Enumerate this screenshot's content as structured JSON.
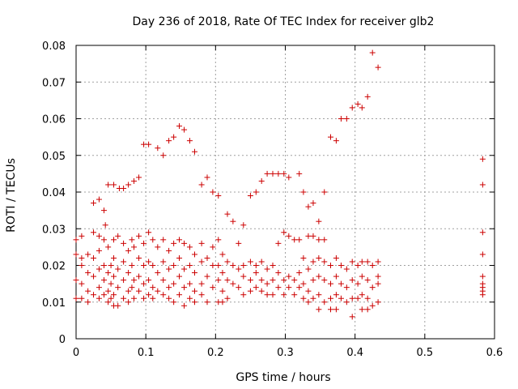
{
  "chart_data": {
    "type": "scatter",
    "title": "Day 236 of 2018, Rate Of TEC Index for receiver glb2",
    "xlabel": "GPS time / hours",
    "ylabel": "ROTI / TECUs",
    "xlim": [
      0,
      0.6
    ],
    "ylim": [
      0,
      0.08
    ],
    "x_ticks": [
      "0",
      "0.1",
      "0.2",
      "0.3",
      "0.4",
      "0.5",
      "0.6"
    ],
    "y_ticks": [
      "0",
      "0.01",
      "0.02",
      "0.03",
      "0.04",
      "0.05",
      "0.06",
      "0.07",
      "0.08"
    ],
    "grid": true,
    "marker": "+",
    "series": [
      {
        "color": "#cc0000",
        "points": [
          [
            0.0,
            0.027
          ],
          [
            0.0,
            0.023
          ],
          [
            0.0,
            0.016
          ],
          [
            0.0,
            0.011
          ],
          [
            0.008,
            0.028
          ],
          [
            0.008,
            0.022
          ],
          [
            0.008,
            0.02
          ],
          [
            0.008,
            0.015
          ],
          [
            0.008,
            0.011
          ],
          [
            0.017,
            0.023
          ],
          [
            0.017,
            0.018
          ],
          [
            0.017,
            0.013
          ],
          [
            0.017,
            0.01
          ],
          [
            0.025,
            0.029
          ],
          [
            0.025,
            0.022
          ],
          [
            0.025,
            0.017
          ],
          [
            0.025,
            0.012
          ],
          [
            0.025,
            0.037
          ],
          [
            0.033,
            0.038
          ],
          [
            0.033,
            0.028
          ],
          [
            0.033,
            0.024
          ],
          [
            0.033,
            0.019
          ],
          [
            0.033,
            0.014
          ],
          [
            0.033,
            0.011
          ],
          [
            0.04,
            0.035
          ],
          [
            0.04,
            0.027
          ],
          [
            0.04,
            0.02
          ],
          [
            0.04,
            0.016
          ],
          [
            0.04,
            0.012
          ],
          [
            0.042,
            0.031
          ],
          [
            0.046,
            0.042
          ],
          [
            0.046,
            0.025
          ],
          [
            0.046,
            0.018
          ],
          [
            0.046,
            0.013
          ],
          [
            0.046,
            0.01
          ],
          [
            0.05,
            0.02
          ],
          [
            0.05,
            0.015
          ],
          [
            0.05,
            0.011
          ],
          [
            0.054,
            0.042
          ],
          [
            0.054,
            0.027
          ],
          [
            0.054,
            0.022
          ],
          [
            0.054,
            0.017
          ],
          [
            0.054,
            0.012
          ],
          [
            0.054,
            0.009
          ],
          [
            0.06,
            0.028
          ],
          [
            0.06,
            0.019
          ],
          [
            0.06,
            0.014
          ],
          [
            0.06,
            0.009
          ],
          [
            0.062,
            0.041
          ],
          [
            0.068,
            0.041
          ],
          [
            0.068,
            0.026
          ],
          [
            0.068,
            0.021
          ],
          [
            0.068,
            0.016
          ],
          [
            0.068,
            0.011
          ],
          [
            0.075,
            0.042
          ],
          [
            0.075,
            0.024
          ],
          [
            0.075,
            0.018
          ],
          [
            0.075,
            0.013
          ],
          [
            0.075,
            0.01
          ],
          [
            0.08,
            0.027
          ],
          [
            0.08,
            0.02
          ],
          [
            0.08,
            0.014
          ],
          [
            0.083,
            0.043
          ],
          [
            0.083,
            0.025
          ],
          [
            0.083,
            0.016
          ],
          [
            0.083,
            0.011
          ],
          [
            0.09,
            0.044
          ],
          [
            0.09,
            0.028
          ],
          [
            0.09,
            0.022
          ],
          [
            0.09,
            0.017
          ],
          [
            0.09,
            0.013
          ],
          [
            0.097,
            0.053
          ],
          [
            0.097,
            0.026
          ],
          [
            0.097,
            0.02
          ],
          [
            0.097,
            0.015
          ],
          [
            0.097,
            0.011
          ],
          [
            0.104,
            0.053
          ],
          [
            0.104,
            0.029
          ],
          [
            0.104,
            0.021
          ],
          [
            0.104,
            0.016
          ],
          [
            0.104,
            0.012
          ],
          [
            0.11,
            0.027
          ],
          [
            0.11,
            0.02
          ],
          [
            0.11,
            0.014
          ],
          [
            0.11,
            0.011
          ],
          [
            0.117,
            0.052
          ],
          [
            0.117,
            0.025
          ],
          [
            0.117,
            0.018
          ],
          [
            0.117,
            0.013
          ],
          [
            0.125,
            0.05
          ],
          [
            0.125,
            0.027
          ],
          [
            0.125,
            0.021
          ],
          [
            0.125,
            0.016
          ],
          [
            0.125,
            0.012
          ],
          [
            0.133,
            0.054
          ],
          [
            0.133,
            0.024
          ],
          [
            0.133,
            0.019
          ],
          [
            0.133,
            0.014
          ],
          [
            0.133,
            0.011
          ],
          [
            0.14,
            0.055
          ],
          [
            0.14,
            0.026
          ],
          [
            0.14,
            0.02
          ],
          [
            0.14,
            0.015
          ],
          [
            0.14,
            0.01
          ],
          [
            0.148,
            0.058
          ],
          [
            0.148,
            0.027
          ],
          [
            0.148,
            0.022
          ],
          [
            0.148,
            0.017
          ],
          [
            0.148,
            0.012
          ],
          [
            0.155,
            0.057
          ],
          [
            0.155,
            0.026
          ],
          [
            0.155,
            0.019
          ],
          [
            0.155,
            0.014
          ],
          [
            0.155,
            0.009
          ],
          [
            0.163,
            0.054
          ],
          [
            0.163,
            0.025
          ],
          [
            0.163,
            0.02
          ],
          [
            0.163,
            0.015
          ],
          [
            0.163,
            0.011
          ],
          [
            0.17,
            0.051
          ],
          [
            0.17,
            0.023
          ],
          [
            0.17,
            0.018
          ],
          [
            0.17,
            0.013
          ],
          [
            0.17,
            0.01
          ],
          [
            0.18,
            0.042
          ],
          [
            0.18,
            0.026
          ],
          [
            0.18,
            0.021
          ],
          [
            0.18,
            0.015
          ],
          [
            0.18,
            0.012
          ],
          [
            0.188,
            0.044
          ],
          [
            0.188,
            0.022
          ],
          [
            0.188,
            0.017
          ],
          [
            0.188,
            0.01
          ],
          [
            0.196,
            0.04
          ],
          [
            0.196,
            0.025
          ],
          [
            0.196,
            0.02
          ],
          [
            0.196,
            0.014
          ],
          [
            0.204,
            0.039
          ],
          [
            0.204,
            0.027
          ],
          [
            0.204,
            0.02
          ],
          [
            0.204,
            0.016
          ],
          [
            0.204,
            0.01
          ],
          [
            0.21,
            0.023
          ],
          [
            0.21,
            0.018
          ],
          [
            0.21,
            0.013
          ],
          [
            0.21,
            0.01
          ],
          [
            0.217,
            0.034
          ],
          [
            0.217,
            0.021
          ],
          [
            0.217,
            0.016
          ],
          [
            0.217,
            0.011
          ],
          [
            0.225,
            0.032
          ],
          [
            0.225,
            0.02
          ],
          [
            0.225,
            0.015
          ],
          [
            0.233,
            0.026
          ],
          [
            0.233,
            0.019
          ],
          [
            0.233,
            0.014
          ],
          [
            0.24,
            0.031
          ],
          [
            0.24,
            0.02
          ],
          [
            0.24,
            0.017
          ],
          [
            0.24,
            0.012
          ],
          [
            0.25,
            0.039
          ],
          [
            0.25,
            0.021
          ],
          [
            0.25,
            0.016
          ],
          [
            0.25,
            0.013
          ],
          [
            0.258,
            0.04
          ],
          [
            0.258,
            0.02
          ],
          [
            0.258,
            0.018
          ],
          [
            0.258,
            0.014
          ],
          [
            0.266,
            0.043
          ],
          [
            0.266,
            0.021
          ],
          [
            0.266,
            0.016
          ],
          [
            0.266,
            0.013
          ],
          [
            0.274,
            0.045
          ],
          [
            0.274,
            0.019
          ],
          [
            0.274,
            0.015
          ],
          [
            0.274,
            0.012
          ],
          [
            0.282,
            0.045
          ],
          [
            0.282,
            0.02
          ],
          [
            0.282,
            0.016
          ],
          [
            0.282,
            0.012
          ],
          [
            0.29,
            0.045
          ],
          [
            0.29,
            0.026
          ],
          [
            0.29,
            0.018
          ],
          [
            0.29,
            0.014
          ],
          [
            0.298,
            0.045
          ],
          [
            0.298,
            0.029
          ],
          [
            0.298,
            0.016
          ],
          [
            0.298,
            0.012
          ],
          [
            0.305,
            0.044
          ],
          [
            0.305,
            0.028
          ],
          [
            0.305,
            0.017
          ],
          [
            0.305,
            0.014
          ],
          [
            0.313,
            0.027
          ],
          [
            0.313,
            0.016
          ],
          [
            0.313,
            0.012
          ],
          [
            0.32,
            0.045
          ],
          [
            0.32,
            0.027
          ],
          [
            0.32,
            0.018
          ],
          [
            0.32,
            0.014
          ],
          [
            0.326,
            0.04
          ],
          [
            0.326,
            0.022
          ],
          [
            0.326,
            0.015
          ],
          [
            0.326,
            0.011
          ],
          [
            0.333,
            0.036
          ],
          [
            0.333,
            0.028
          ],
          [
            0.333,
            0.019
          ],
          [
            0.333,
            0.013
          ],
          [
            0.333,
            0.01
          ],
          [
            0.34,
            0.037
          ],
          [
            0.34,
            0.028
          ],
          [
            0.34,
            0.021
          ],
          [
            0.34,
            0.016
          ],
          [
            0.34,
            0.011
          ],
          [
            0.348,
            0.032
          ],
          [
            0.348,
            0.027
          ],
          [
            0.348,
            0.022
          ],
          [
            0.348,
            0.017
          ],
          [
            0.348,
            0.012
          ],
          [
            0.348,
            0.008
          ],
          [
            0.356,
            0.04
          ],
          [
            0.356,
            0.027
          ],
          [
            0.356,
            0.021
          ],
          [
            0.356,
            0.016
          ],
          [
            0.356,
            0.01
          ],
          [
            0.365,
            0.055
          ],
          [
            0.365,
            0.02
          ],
          [
            0.365,
            0.015
          ],
          [
            0.365,
            0.011
          ],
          [
            0.365,
            0.008
          ],
          [
            0.373,
            0.054
          ],
          [
            0.373,
            0.022
          ],
          [
            0.373,
            0.017
          ],
          [
            0.373,
            0.012
          ],
          [
            0.373,
            0.008
          ],
          [
            0.38,
            0.06
          ],
          [
            0.38,
            0.02
          ],
          [
            0.38,
            0.015
          ],
          [
            0.38,
            0.011
          ],
          [
            0.388,
            0.06
          ],
          [
            0.388,
            0.019
          ],
          [
            0.388,
            0.014
          ],
          [
            0.388,
            0.01
          ],
          [
            0.396,
            0.063
          ],
          [
            0.396,
            0.021
          ],
          [
            0.396,
            0.016
          ],
          [
            0.396,
            0.011
          ],
          [
            0.396,
            0.006
          ],
          [
            0.404,
            0.064
          ],
          [
            0.404,
            0.02
          ],
          [
            0.404,
            0.015
          ],
          [
            0.404,
            0.011
          ],
          [
            0.41,
            0.063
          ],
          [
            0.41,
            0.021
          ],
          [
            0.41,
            0.017
          ],
          [
            0.41,
            0.012
          ],
          [
            0.41,
            0.008
          ],
          [
            0.418,
            0.066
          ],
          [
            0.418,
            0.021
          ],
          [
            0.418,
            0.016
          ],
          [
            0.418,
            0.011
          ],
          [
            0.418,
            0.008
          ],
          [
            0.425,
            0.078
          ],
          [
            0.425,
            0.02
          ],
          [
            0.425,
            0.014
          ],
          [
            0.425,
            0.009
          ],
          [
            0.433,
            0.074
          ],
          [
            0.433,
            0.021
          ],
          [
            0.433,
            0.017
          ],
          [
            0.433,
            0.015
          ],
          [
            0.433,
            0.01
          ],
          [
            0.583,
            0.049
          ],
          [
            0.583,
            0.042
          ],
          [
            0.583,
            0.029
          ],
          [
            0.583,
            0.023
          ],
          [
            0.583,
            0.017
          ],
          [
            0.583,
            0.015
          ],
          [
            0.583,
            0.014
          ],
          [
            0.583,
            0.013
          ],
          [
            0.583,
            0.012
          ]
        ]
      }
    ]
  }
}
